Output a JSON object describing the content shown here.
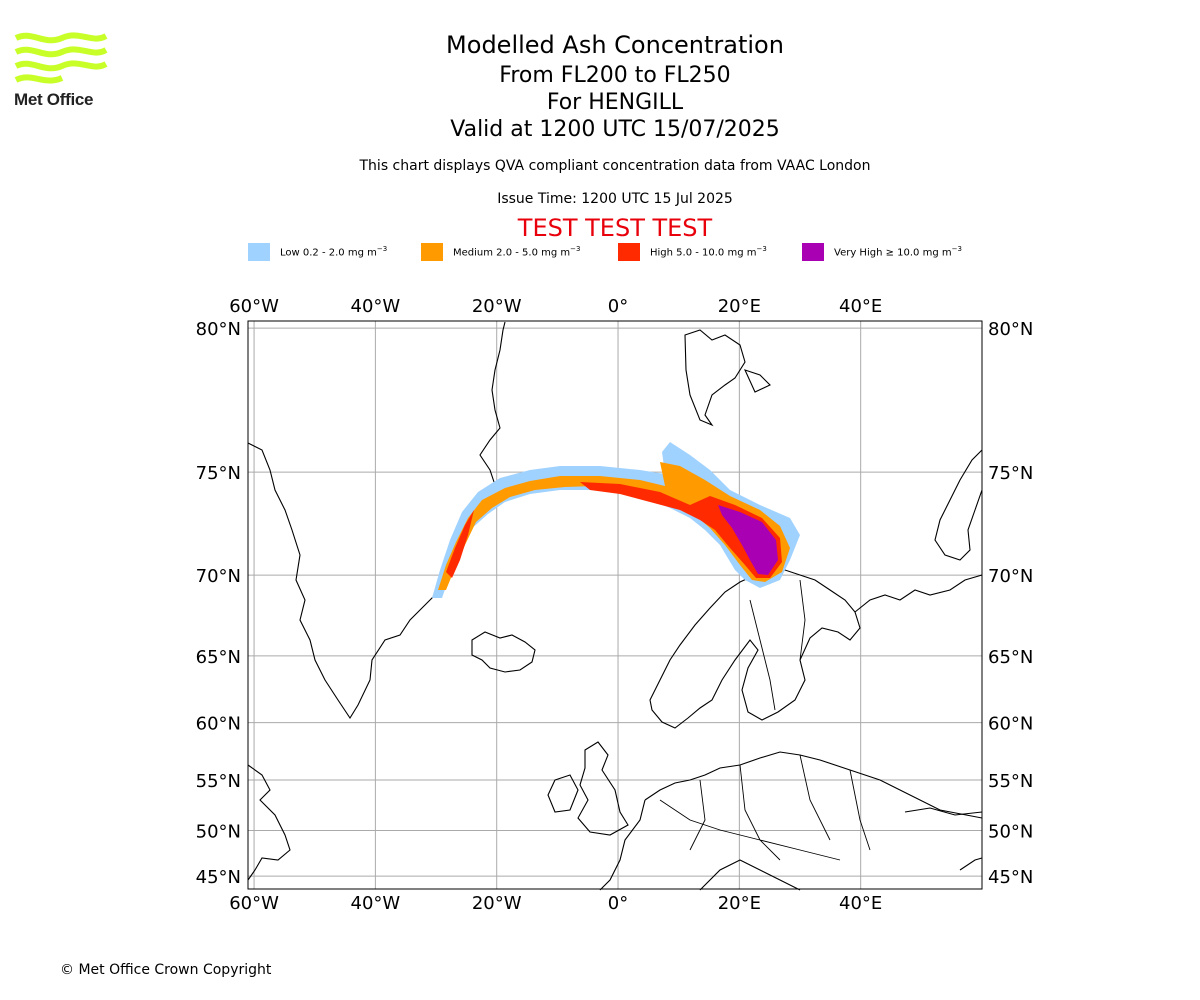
{
  "header": {
    "title": "Modelled Ash Concentration",
    "flight_levels": "From FL200 to FL250",
    "volcano": "For HENGILL",
    "valid": "Valid at 1200 UTC 15/07/2025",
    "description": "This chart displays QVA compliant concentration data from VAAC London",
    "issue_time": "Issue Time: 1200 UTC 15 Jul 2025",
    "test_banner": "TEST TEST TEST"
  },
  "logo": {
    "text": "Met Office",
    "icon": "met-office-wave-logo",
    "color": "#c8ff28"
  },
  "legend": [
    {
      "label": "Low 0.2 - 2.0 mg m",
      "sup": "−3",
      "color": "#a0d2ff"
    },
    {
      "label": "Medium 2.0 - 5.0 mg m",
      "sup": "−3",
      "color": "#ff9a00"
    },
    {
      "label": "High 5.0 - 10.0 mg m",
      "sup": "−3",
      "color": "#ff2a00"
    },
    {
      "label": "Very High  ≥  10.0 mg m",
      "sup": "−3",
      "color": "#aa00b4"
    }
  ],
  "map": {
    "lon_range": [
      -61,
      60
    ],
    "lat_range": [
      43.5,
      80.2
    ],
    "lon_ticks": [
      {
        "value": -60,
        "label": "60°W"
      },
      {
        "value": -40,
        "label": "40°W"
      },
      {
        "value": -20,
        "label": "20°W"
      },
      {
        "value": 0,
        "label": "0°"
      },
      {
        "value": 20,
        "label": "20°E"
      },
      {
        "value": 40,
        "label": "40°E"
      }
    ],
    "lat_ticks": [
      {
        "value": 80,
        "label": "80°N"
      },
      {
        "value": 75,
        "label": "75°N"
      },
      {
        "value": 70,
        "label": "70°N"
      },
      {
        "value": 65,
        "label": "65°N"
      },
      {
        "value": 60,
        "label": "60°N"
      },
      {
        "value": 55,
        "label": "55°N"
      },
      {
        "value": 50,
        "label": "50°N"
      },
      {
        "value": 45,
        "label": "45°N"
      }
    ],
    "grid": true,
    "coastline_color": "#000000",
    "grid_color": "#aaaaaa"
  },
  "footer": {
    "copyright": "© Met Office Crown Copyright"
  }
}
